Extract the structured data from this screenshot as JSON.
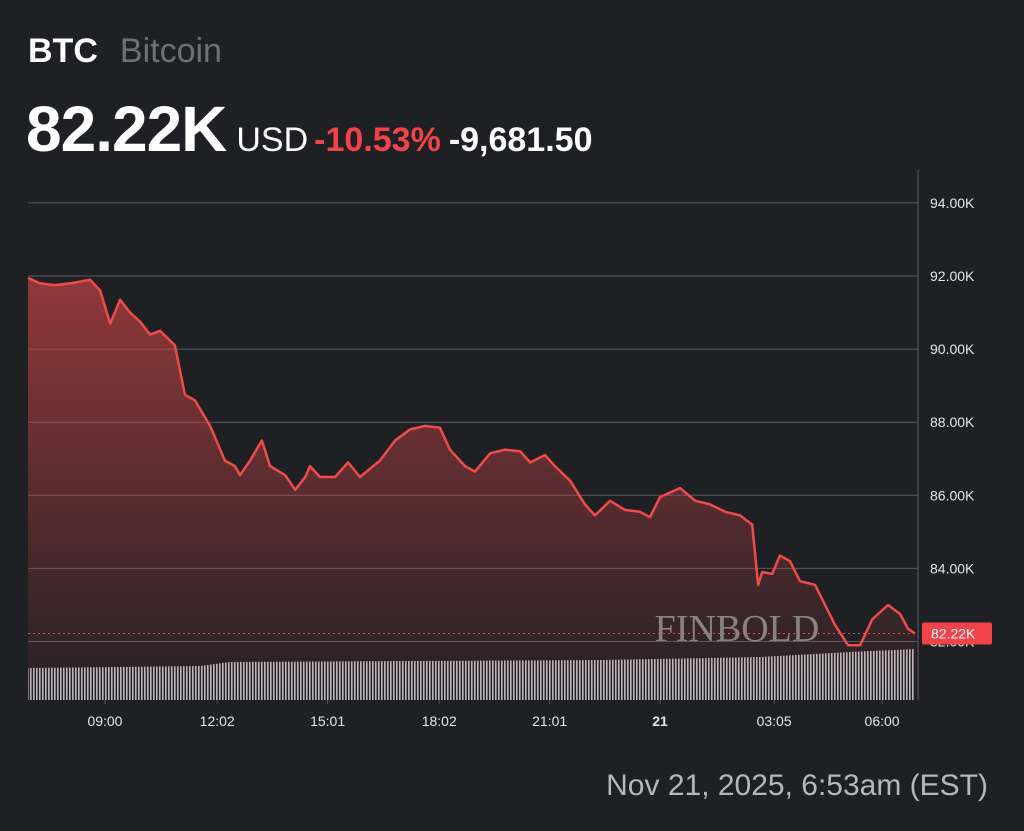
{
  "header": {
    "symbol": "BTC",
    "name": "Bitcoin",
    "currency": "USD",
    "change_pct": "-10.53%",
    "change": "-9,681.50"
  },
  "timestamp": "Nov 21, 2025, 6:53am (EST)",
  "watermark": "FINBOLD",
  "chart_data": {
    "type": "line",
    "color": "#f04b4b",
    "grid": true,
    "last_price": {
      "value": 82220,
      "label": "82.22K"
    },
    "x": [
      6.92,
      7.24,
      7.65,
      8.06,
      8.6,
      8.73,
      8.87,
      9.14,
      9.41,
      9.68,
      9.95,
      10.22,
      10.49,
      10.89,
      11.16,
      11.43,
      11.84,
      12.24,
      12.51,
      12.65,
      12.92,
      13.24,
      13.46,
      13.87,
      14.14,
      14.41,
      14.54,
      14.81,
      15.22,
      15.57,
      15.89,
      16.43,
      16.84,
      17.24,
      17.65,
      18.05,
      18.32,
      18.73,
      19.0,
      19.41,
      19.81,
      20.22,
      20.49,
      20.89,
      21.16,
      21.57,
      21.97,
      22.24,
      22.65,
      23.05,
      23.46,
      23.73,
      24.0,
      24.54,
      24.95,
      25.35,
      25.76,
      26.16,
      26.49,
      26.65,
      26.76,
      27.03,
      27.24,
      27.51,
      27.78,
      28.19,
      28.46,
      28.73,
      29.08,
      29.41,
      29.73,
      30.16,
      30.49,
      30.7,
      30.89
    ],
    "values": [
      91950,
      91800,
      91750,
      91800,
      91900,
      91750,
      91600,
      90700,
      91350,
      91000,
      90750,
      90400,
      90500,
      90100,
      88750,
      88600,
      87900,
      86950,
      86800,
      86550,
      86950,
      87500,
      86800,
      86550,
      86150,
      86500,
      86800,
      86500,
      86500,
      86900,
      86500,
      86950,
      87500,
      87800,
      87900,
      87850,
      87250,
      86800,
      86650,
      87150,
      87250,
      87200,
      86900,
      87100,
      86800,
      86400,
      85750,
      85450,
      85850,
      85600,
      85550,
      85400,
      85950,
      86200,
      85850,
      85750,
      85550,
      85450,
      85200,
      83550,
      83900,
      83850,
      84350,
      84200,
      83650,
      83550,
      83000,
      82450,
      81900,
      81900,
      82600,
      83000,
      82750,
      82350,
      82220
    ],
    "xlim": [
      6.92,
      30.89
    ],
    "ylim": [
      80400,
      94900
    ],
    "xticks": [
      {
        "value": 9,
        "label": "09:00"
      },
      {
        "value": 12.033,
        "label": "12:02"
      },
      {
        "value": 15.017,
        "label": "15:01"
      },
      {
        "value": 18.033,
        "label": "18:02"
      },
      {
        "value": 21.017,
        "label": "21:01"
      },
      {
        "value": 24,
        "label": "21"
      },
      {
        "value": 27.083,
        "label": "03:05"
      },
      {
        "value": 30,
        "label": "06:00"
      }
    ],
    "yticks": [
      {
        "value": 82000,
        "label": "82.00K"
      },
      {
        "value": 84000,
        "label": "84.00K"
      },
      {
        "value": 86000,
        "label": "86.00K"
      },
      {
        "value": 88000,
        "label": "88.00K"
      },
      {
        "value": 90000,
        "label": "90.00K"
      },
      {
        "value": 92000,
        "label": "92.00K"
      },
      {
        "value": 94000,
        "label": "94.00K"
      }
    ]
  }
}
